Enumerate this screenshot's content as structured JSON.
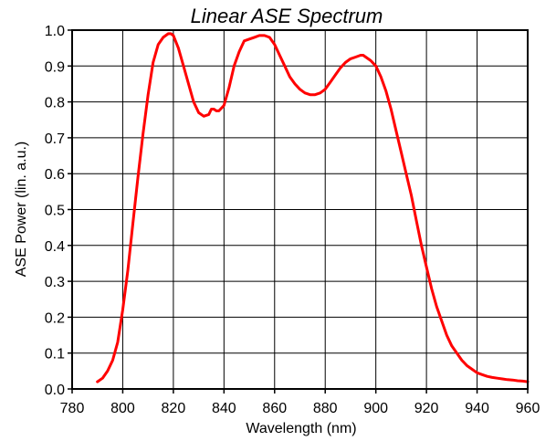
{
  "chart_data": {
    "type": "line",
    "title": "Linear ASE Spectrum",
    "xlabel": "Wavelength (nm)",
    "ylabel": "ASE Power (lin. a.u.)",
    "xlim": [
      780,
      960
    ],
    "ylim": [
      0.0,
      1.0
    ],
    "x_ticks": [
      780,
      800,
      820,
      840,
      860,
      880,
      900,
      920,
      940,
      960
    ],
    "y_ticks": [
      "0.0",
      "0.1",
      "0.2",
      "0.3",
      "0.4",
      "0.5",
      "0.6",
      "0.7",
      "0.8",
      "0.9",
      "1.0"
    ],
    "grid": true,
    "legend": "none",
    "series": [
      {
        "color": "#ff0000",
        "x": [
          790,
          792,
          794,
          796,
          798,
          800,
          802,
          804,
          806,
          808,
          810,
          812,
          814,
          816,
          818,
          819,
          820,
          822,
          824,
          826,
          828,
          830,
          832,
          834,
          835,
          836,
          837,
          838,
          840,
          842,
          844,
          846,
          848,
          850,
          852,
          854,
          856,
          858,
          860,
          862,
          864,
          866,
          868,
          870,
          872,
          874,
          876,
          878,
          880,
          882,
          884,
          886,
          888,
          890,
          892,
          894,
          895,
          896,
          898,
          900,
          902,
          904,
          906,
          908,
          910,
          912,
          914,
          916,
          918,
          920,
          922,
          924,
          926,
          928,
          930,
          932,
          934,
          936,
          938,
          940,
          942,
          944,
          946,
          948,
          950,
          952,
          954,
          956,
          958,
          960
        ],
        "y": [
          0.02,
          0.03,
          0.05,
          0.08,
          0.13,
          0.22,
          0.33,
          0.46,
          0.59,
          0.71,
          0.82,
          0.91,
          0.96,
          0.98,
          0.99,
          0.99,
          0.985,
          0.95,
          0.9,
          0.85,
          0.8,
          0.77,
          0.76,
          0.765,
          0.78,
          0.78,
          0.775,
          0.775,
          0.79,
          0.84,
          0.9,
          0.94,
          0.97,
          0.975,
          0.98,
          0.985,
          0.985,
          0.98,
          0.96,
          0.93,
          0.9,
          0.87,
          0.85,
          0.835,
          0.825,
          0.82,
          0.82,
          0.825,
          0.835,
          0.855,
          0.875,
          0.895,
          0.91,
          0.92,
          0.925,
          0.93,
          0.93,
          0.925,
          0.915,
          0.9,
          0.87,
          0.83,
          0.78,
          0.72,
          0.66,
          0.6,
          0.54,
          0.47,
          0.4,
          0.34,
          0.28,
          0.23,
          0.19,
          0.15,
          0.12,
          0.1,
          0.08,
          0.065,
          0.055,
          0.045,
          0.04,
          0.035,
          0.032,
          0.03,
          0.028,
          0.026,
          0.025,
          0.023,
          0.022,
          0.02
        ]
      }
    ]
  }
}
